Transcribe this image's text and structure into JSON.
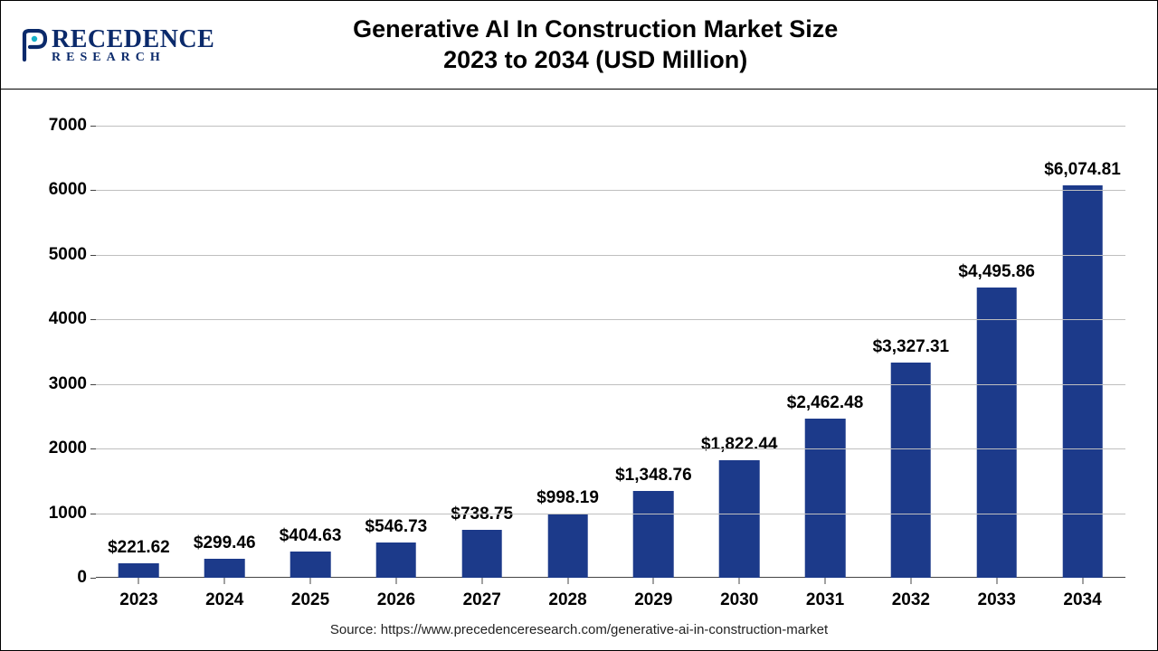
{
  "logo": {
    "brand_main": "RECEDENCE",
    "brand_sub": "RESEARCH",
    "brand_color": "#0b2a6b"
  },
  "title": {
    "line1": "Generative AI In Construction Market Size",
    "line2": "2023 to 2034 (USD Million)",
    "fontsize": 27,
    "color": "#000000",
    "weight": 700
  },
  "chart": {
    "type": "bar",
    "categories": [
      "2023",
      "2024",
      "2025",
      "2026",
      "2027",
      "2028",
      "2029",
      "2030",
      "2031",
      "2032",
      "2033",
      "2034"
    ],
    "values": [
      221.62,
      299.46,
      404.63,
      546.73,
      738.75,
      998.19,
      1348.76,
      1822.44,
      2462.48,
      3327.31,
      4495.86,
      6074.81
    ],
    "value_labels": [
      "$221.62",
      "$299.46",
      "$404.63",
      "$546.73",
      "$738.75",
      "$998.19",
      "$1,348.76",
      "$1,822.44",
      "$2,462.48",
      "$3,327.31",
      "$4,495.86",
      "$6,074.81"
    ],
    "bar_color": "#1c3a8a",
    "background_color": "#ffffff",
    "grid_color": "#bfbfbf",
    "axis_color": "#444444",
    "ylim": [
      0,
      7000
    ],
    "ytick_step": 1000,
    "yticks": [
      0,
      1000,
      2000,
      3000,
      4000,
      5000,
      6000,
      7000
    ],
    "bar_width_ratio": 0.47,
    "label_fontsize": 19,
    "label_weight": 700,
    "tick_fontsize": 19,
    "tick_weight": 700
  },
  "source": {
    "prefix": "Source: ",
    "url": "https://www.precedenceresearch.com/generative-ai-in-construction-market",
    "fontsize": 15,
    "color": "#222222"
  }
}
